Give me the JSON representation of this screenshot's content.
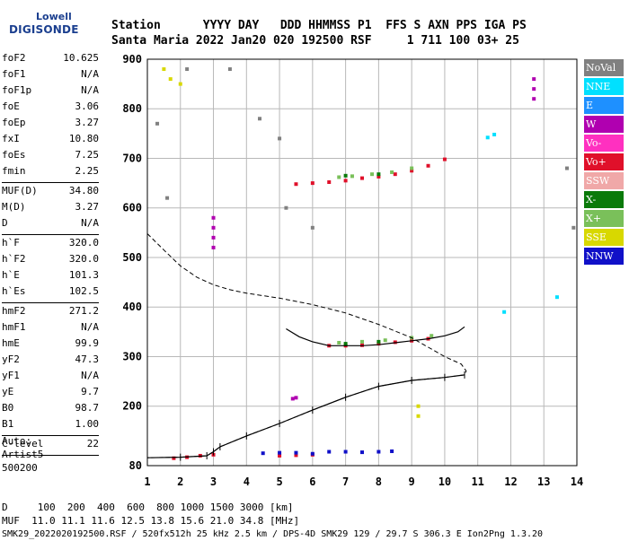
{
  "logo": {
    "line1": "Lowell",
    "line2": "DIGISONDE"
  },
  "header": {
    "line1": "Station      YYYY DAY   DDD HHMMSS P1  FFS S AXN PPS IGA PS",
    "line2": "Santa Maria 2022 Jan20 020 192500 RSF     1 711 100 03+ 25"
  },
  "params": [
    {
      "k": "foF2",
      "v": "10.625"
    },
    {
      "k": "foF1",
      "v": "N/A"
    },
    {
      "k": "foF1p",
      "v": "N/A"
    },
    {
      "k": "foE",
      "v": "3.06"
    },
    {
      "k": "foEp",
      "v": "3.27"
    },
    {
      "k": "fxI",
      "v": "10.80"
    },
    {
      "k": "foEs",
      "v": "7.25"
    },
    {
      "k": "fmin",
      "v": "2.25"
    },
    {
      "sep": true
    },
    {
      "k": "MUF(D)",
      "v": "34.80"
    },
    {
      "k": "M(D)",
      "v": "3.27"
    },
    {
      "k": "D",
      "v": "N/A"
    },
    {
      "sep": true
    },
    {
      "k": "h`F",
      "v": "320.0"
    },
    {
      "k": "h`F2",
      "v": "320.0"
    },
    {
      "k": "h`E",
      "v": "101.3"
    },
    {
      "k": "h`Es",
      "v": "102.5"
    },
    {
      "sep": true
    },
    {
      "k": "hmF2",
      "v": "271.2"
    },
    {
      "k": "hmF1",
      "v": "N/A"
    },
    {
      "k": "hmE",
      "v": "99.9"
    },
    {
      "k": "yF2",
      "v": "47.3"
    },
    {
      "k": "yF1",
      "v": "N/A"
    },
    {
      "k": "yE",
      "v": "9.7"
    },
    {
      "k": "B0",
      "v": "98.7"
    },
    {
      "k": "B1",
      "v": "1.00"
    },
    {
      "sep": true
    },
    {
      "k": "C-level",
      "v": "22"
    },
    {
      "sep": true
    }
  ],
  "auto": {
    "line1": "Auto:",
    "line2": "Artist5",
    "line3": "500200"
  },
  "footer": {
    "line1": "D     100  200  400  600  800 1000 1500 3000 [km]",
    "line2": "MUF  11.0 11.1 11.6 12.5 13.8 15.6 21.0 34.8 [MHz]",
    "line3": "SMK29_2022020192500.RSF / 520fx512h 25 kHz 2.5 km / DPS-4D SMK29 129 / 29.7 S 306.3 E Ion2Png 1.3.20"
  },
  "legend": [
    {
      "label": "NoVal",
      "color": "#808080"
    },
    {
      "label": "NNE",
      "color": "#00e0ff"
    },
    {
      "label": "E",
      "color": "#1e90ff"
    },
    {
      "label": "W",
      "color": "#b000b0"
    },
    {
      "label": "Vo-",
      "color": "#ff30c0"
    },
    {
      "label": "Vo+",
      "color": "#e0102a"
    },
    {
      "label": "SSW",
      "color": "#f0a8a8"
    },
    {
      "label": "X-",
      "color": "#0a7a0a"
    },
    {
      "label": "X+",
      "color": "#7ac05a"
    },
    {
      "label": "SSE",
      "color": "#d8d800"
    },
    {
      "label": "NNW",
      "color": "#1010c8"
    }
  ],
  "chart_data": {
    "type": "scatter",
    "xlim": [
      1,
      14
    ],
    "ylim": [
      80,
      900
    ],
    "x_ticks": [
      1,
      2,
      3,
      4,
      5,
      6,
      7,
      8,
      9,
      10,
      11,
      12,
      13,
      14
    ],
    "y_ticks": [
      80,
      200,
      300,
      400,
      500,
      600,
      700,
      800,
      900
    ],
    "grid": true,
    "x_tick_labels": [
      "1",
      "2",
      "3",
      "4",
      "5",
      "6",
      "7",
      "8",
      "9",
      "10",
      "11",
      "12",
      "13",
      "14"
    ],
    "y_tick_labels": [
      "80",
      "200",
      "300",
      "400",
      "500",
      "600",
      "700",
      "800",
      "900"
    ],
    "series": [
      {
        "name": "Vo+",
        "color": "#e0102a",
        "points": [
          [
            5.5,
            648
          ],
          [
            6.0,
            650
          ],
          [
            6.5,
            652
          ],
          [
            7.0,
            655
          ],
          [
            7.5,
            660
          ],
          [
            8.0,
            663
          ],
          [
            8.5,
            668
          ],
          [
            9.0,
            675
          ],
          [
            9.5,
            685
          ],
          [
            10.0,
            698
          ],
          [
            6.5,
            322
          ],
          [
            7.0,
            322
          ],
          [
            7.5,
            323
          ],
          [
            8.0,
            326
          ],
          [
            8.5,
            329
          ],
          [
            9.0,
            332
          ],
          [
            9.5,
            336
          ],
          [
            1.8,
            95
          ],
          [
            2.2,
            97
          ],
          [
            2.6,
            100
          ],
          [
            3.0,
            102
          ],
          [
            5.0,
            100
          ],
          [
            5.5,
            101
          ],
          [
            6.0,
            102
          ]
        ]
      },
      {
        "name": "X+",
        "color": "#7ac05a",
        "points": [
          [
            6.8,
            662
          ],
          [
            7.2,
            664
          ],
          [
            7.8,
            668
          ],
          [
            8.4,
            672
          ],
          [
            9.0,
            680
          ],
          [
            6.8,
            328
          ],
          [
            7.5,
            330
          ],
          [
            8.2,
            333
          ],
          [
            9.0,
            338
          ],
          [
            9.6,
            342
          ]
        ]
      },
      {
        "name": "NNW",
        "color": "#1010c8",
        "points": [
          [
            4.5,
            105
          ],
          [
            5.0,
            106
          ],
          [
            5.5,
            106
          ],
          [
            6.0,
            104
          ],
          [
            6.5,
            108
          ],
          [
            7.0,
            108
          ],
          [
            7.5,
            107
          ],
          [
            8.0,
            108
          ],
          [
            8.4,
            109
          ]
        ]
      },
      {
        "name": "W",
        "color": "#b000b0",
        "points": [
          [
            3.0,
            520
          ],
          [
            3.0,
            540
          ],
          [
            3.0,
            560
          ],
          [
            3.0,
            580
          ],
          [
            12.7,
            820
          ],
          [
            12.7,
            840
          ],
          [
            12.7,
            860
          ],
          [
            5.4,
            215
          ],
          [
            5.5,
            217
          ]
        ]
      },
      {
        "name": "NNE",
        "color": "#00e0ff",
        "points": [
          [
            11.3,
            742
          ],
          [
            11.5,
            748
          ],
          [
            11.8,
            390
          ],
          [
            13.4,
            420
          ]
        ]
      },
      {
        "name": "X-",
        "color": "#0a7a0a",
        "points": [
          [
            7.0,
            665
          ],
          [
            8.0,
            668
          ],
          [
            7.0,
            326
          ],
          [
            8.0,
            330
          ]
        ]
      },
      {
        "name": "SSE",
        "color": "#d8d800",
        "points": [
          [
            1.5,
            880
          ],
          [
            1.7,
            860
          ],
          [
            2.0,
            850
          ],
          [
            9.2,
            180
          ],
          [
            9.2,
            200
          ]
        ]
      },
      {
        "name": "NoVal",
        "color": "#808080",
        "points": [
          [
            1.3,
            770
          ],
          [
            1.6,
            620
          ],
          [
            2.2,
            880
          ],
          [
            3.5,
            880
          ],
          [
            4.4,
            780
          ],
          [
            5.0,
            740
          ],
          [
            5.2,
            600
          ],
          [
            6.0,
            560
          ],
          [
            13.9,
            560
          ],
          [
            13.7,
            680
          ]
        ]
      }
    ],
    "profile": [
      [
        1.0,
        548
      ],
      [
        1.5,
        515
      ],
      [
        2.0,
        483
      ],
      [
        2.5,
        460
      ],
      [
        3.0,
        445
      ],
      [
        3.5,
        435
      ],
      [
        4.0,
        428
      ],
      [
        5.0,
        418
      ],
      [
        6.0,
        405
      ],
      [
        7.0,
        388
      ],
      [
        8.0,
        365
      ],
      [
        9.0,
        338
      ],
      [
        10.0,
        300
      ],
      [
        10.5,
        285
      ],
      [
        10.65,
        271
      ],
      [
        10.6,
        263
      ],
      [
        10.0,
        258
      ],
      [
        9.0,
        252
      ],
      [
        8.0,
        240
      ],
      [
        7.0,
        218
      ],
      [
        6.0,
        192
      ],
      [
        5.0,
        165
      ],
      [
        4.0,
        140
      ],
      [
        3.2,
        118
      ],
      [
        3.0,
        108
      ],
      [
        2.8,
        100
      ],
      [
        2.0,
        97
      ],
      [
        1.0,
        96
      ]
    ],
    "trace_f2": [
      [
        5.2,
        356
      ],
      [
        5.6,
        340
      ],
      [
        6.0,
        330
      ],
      [
        6.5,
        322
      ],
      [
        7.0,
        322
      ],
      [
        7.5,
        322
      ],
      [
        8.0,
        324
      ],
      [
        8.5,
        328
      ],
      [
        9.0,
        332
      ],
      [
        9.5,
        336
      ],
      [
        10.0,
        342
      ],
      [
        10.4,
        350
      ],
      [
        10.6,
        360
      ]
    ]
  }
}
